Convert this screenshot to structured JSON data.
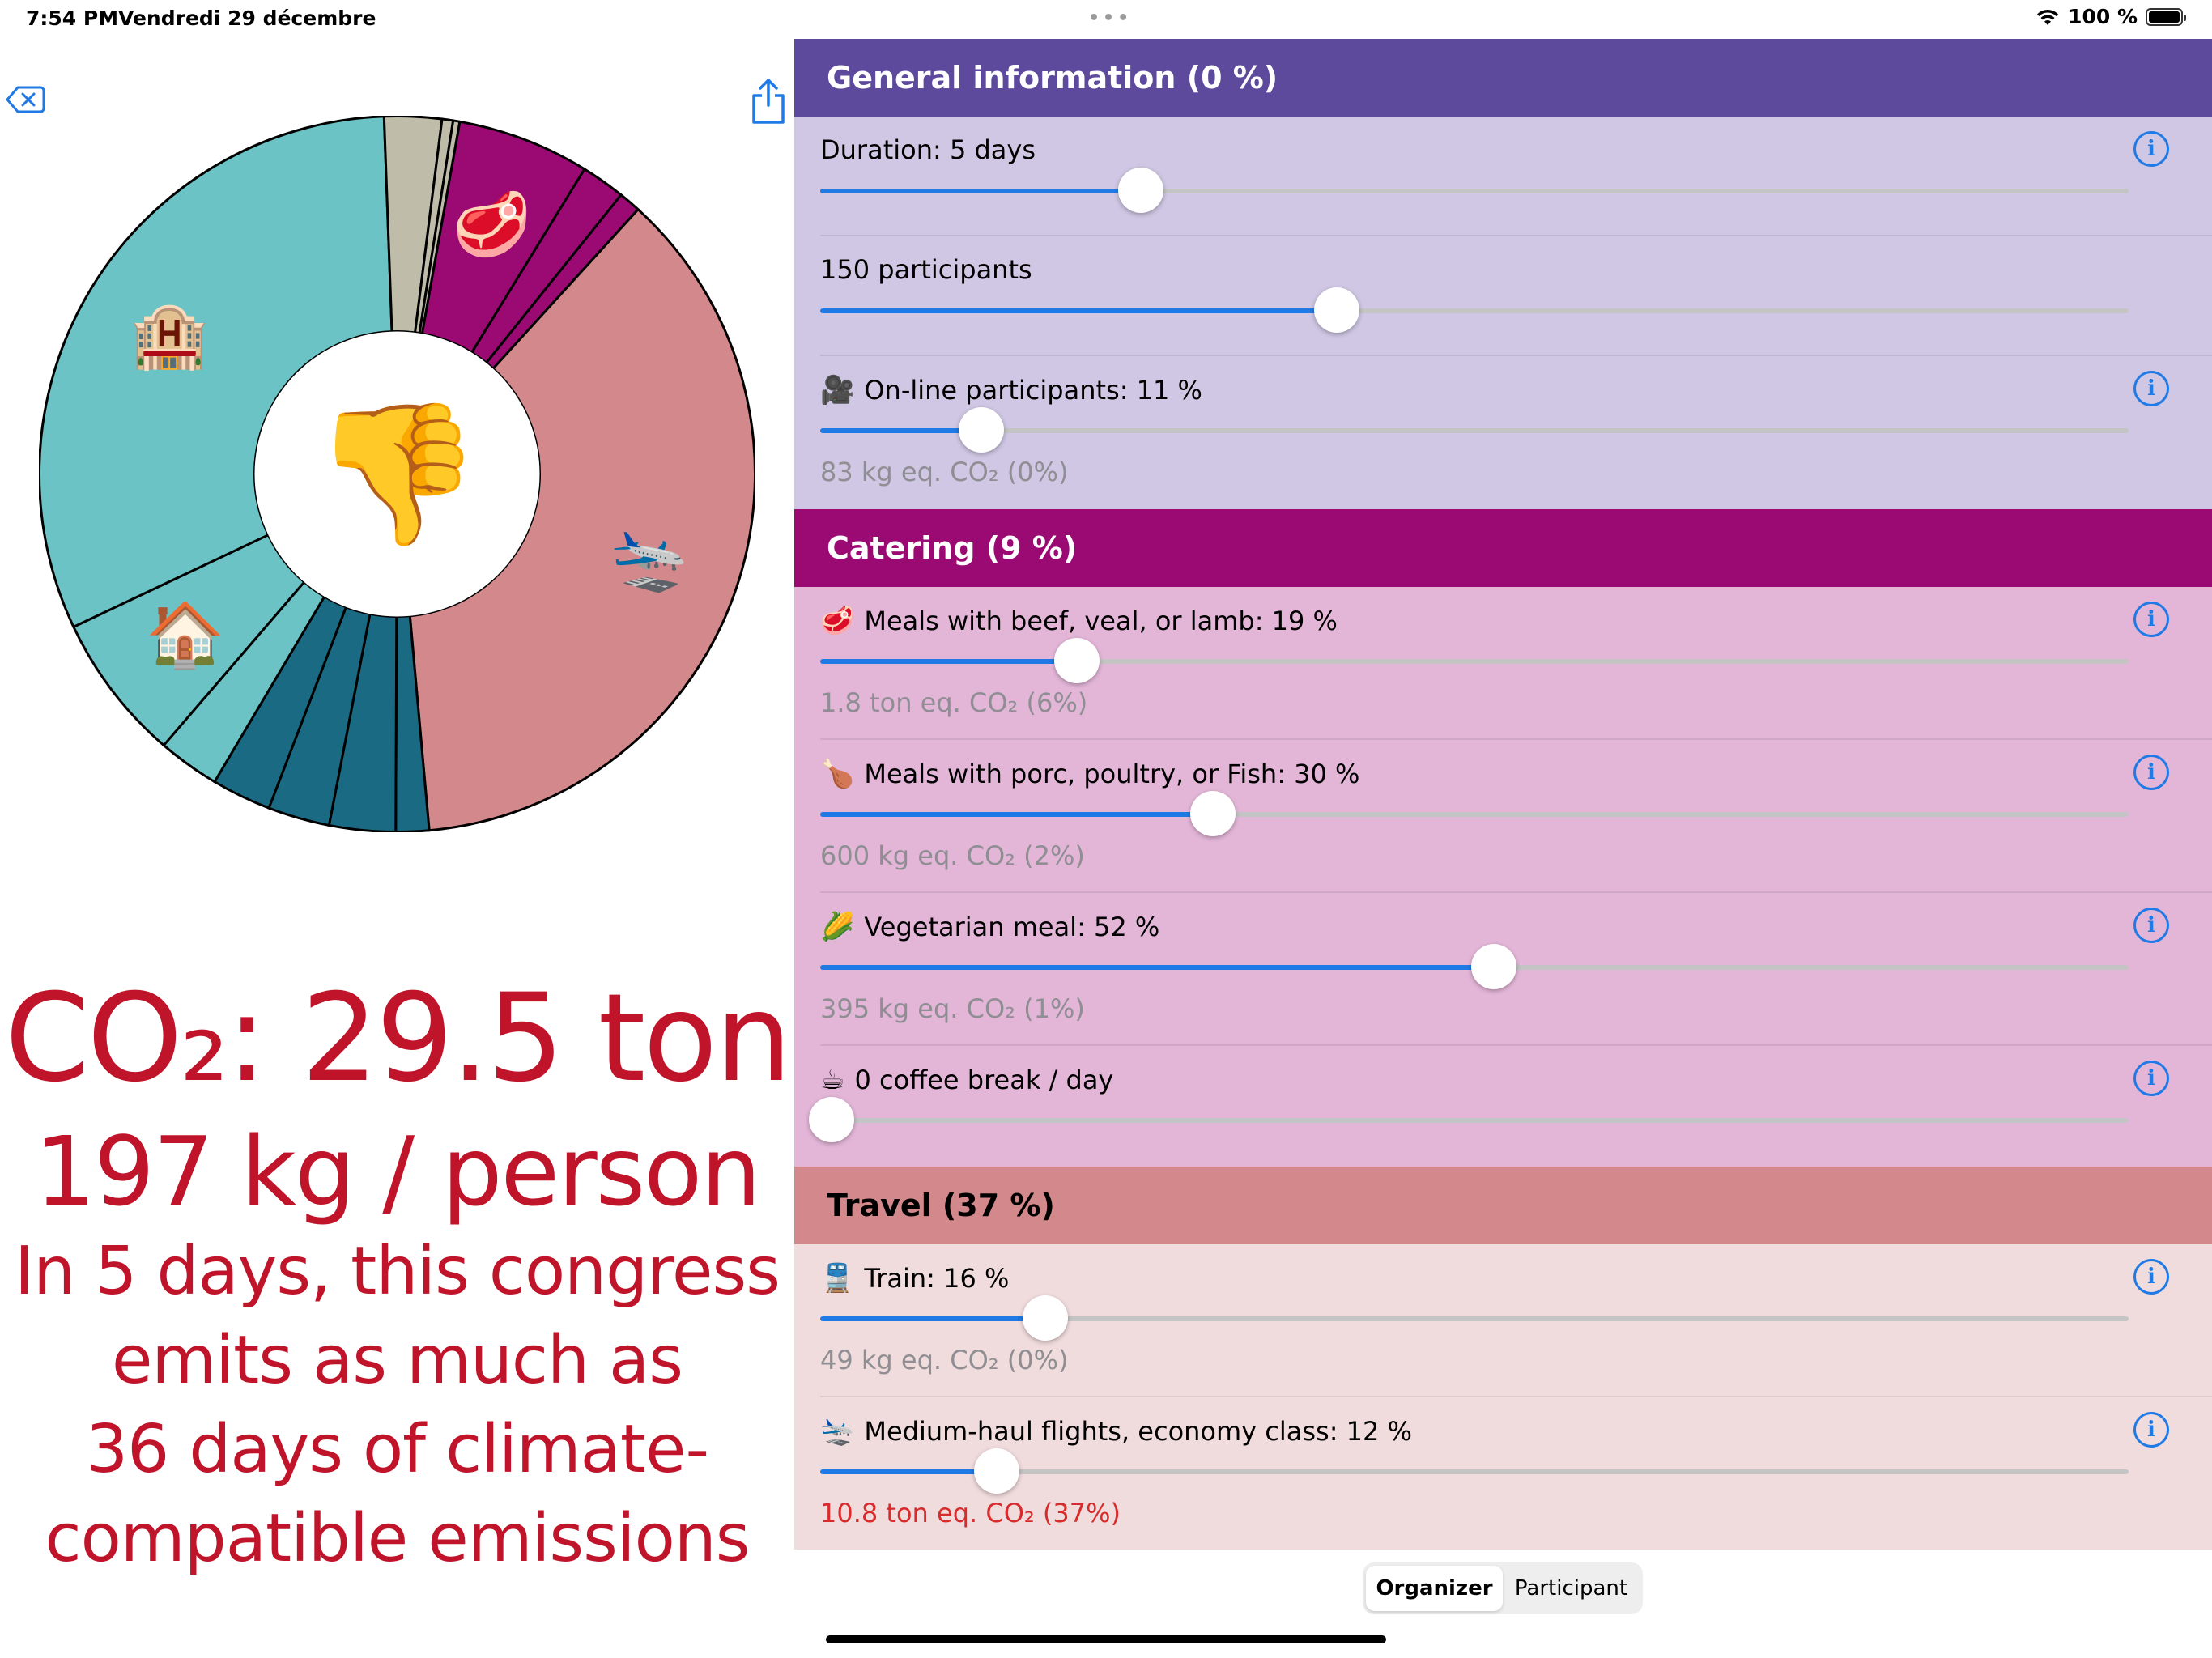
{
  "status": {
    "time": "7:54 PM",
    "date": "Vendredi 29 décembre",
    "battery": "100 %"
  },
  "summary": {
    "co2_total": "CO₂: 29.5 ton",
    "per_person": "197 kg / person",
    "lines": [
      "In 5 days, this congress",
      "emits as much as",
      "36 days of climate-",
      "compatible emissions"
    ]
  },
  "chart_data": {
    "type": "pie",
    "colors": {
      "general": "#5e4a9c",
      "catering": "#9b0a73",
      "travel": "#d3898b",
      "accommodation": "#6cc3c5",
      "local_transport": "#1a6a84",
      "other": "#bfbdaa"
    },
    "center_emoji": "👎",
    "segments": [
      {
        "value": 6,
        "color": "#9b0a73",
        "emoji": "🥩"
      },
      {
        "value": 2,
        "color": "#9b0a73"
      },
      {
        "value": 1,
        "color": "#9b0a73"
      },
      {
        "value": 37,
        "color": "#d3898b",
        "emoji": "🛬"
      },
      {
        "value": 1.5,
        "color": "#1a6a84"
      },
      {
        "value": 3,
        "color": "#1a6a84"
      },
      {
        "value": 2.8,
        "color": "#1a6a84"
      },
      {
        "value": 2.7,
        "color": "#1a6a84"
      },
      {
        "value": 2.8,
        "color": "#6cc3c5"
      },
      {
        "value": 6.7,
        "color": "#6cc3c5",
        "emoji": "🏠"
      },
      {
        "value": 31.6,
        "color": "#6cc3c5",
        "emoji": "🏨"
      },
      {
        "value": 2.6,
        "color": "#bfbdaa"
      },
      {
        "value": 0.5,
        "color": "#bfbdaa"
      },
      {
        "value": 0.3,
        "color": "#bfbdaa"
      }
    ]
  },
  "general": {
    "title": "General information (0 %)",
    "duration_label": "Duration: 5 days",
    "duration_level": 0.245,
    "participants_label": "150 participants",
    "participants_level": 0.395,
    "online_label": "On-line participants: 11 %",
    "online_emoji": "🎥",
    "online_level": 0.123,
    "emission": "83 kg eq. CO₂ (0%)"
  },
  "catering": {
    "title": "Catering (9 %)",
    "beef_label": "Meals with beef, veal, or lamb: 19 %",
    "beef_emoji": "🥩",
    "beef_level": 0.196,
    "beef_emission": "1.8 ton eq. CO₂ (6%)",
    "porc_label": "Meals with porc, poultry, or Fish: 30 %",
    "porc_emoji": "🍗",
    "porc_level": 0.3,
    "porc_emission": "600 kg eq. CO₂ (2%)",
    "veg_label": "Vegetarian meal: 52 %",
    "veg_emoji": "🌽",
    "veg_level": 0.515,
    "veg_emission": "395 kg eq. CO₂ (1%)",
    "coffee_label": "0 coffee break / day",
    "coffee_emoji": "☕",
    "coffee_level": 0.0
  },
  "travel": {
    "title": "Travel (37 %)",
    "train_label": "Train: 16 %",
    "train_emoji": "🚆",
    "train_level": 0.172,
    "train_emission": "49 kg eq. CO₂ (0%)",
    "flight_label": "Medium-haul flights, economy class: 12 %",
    "flight_emoji": "🛬",
    "flight_level": 0.135,
    "flight_emission": "10.8 ton eq. CO₂ (37%)"
  },
  "tabs": {
    "organizer": "Organizer",
    "participant": "Participant"
  },
  "icons": {
    "info": "i"
  }
}
